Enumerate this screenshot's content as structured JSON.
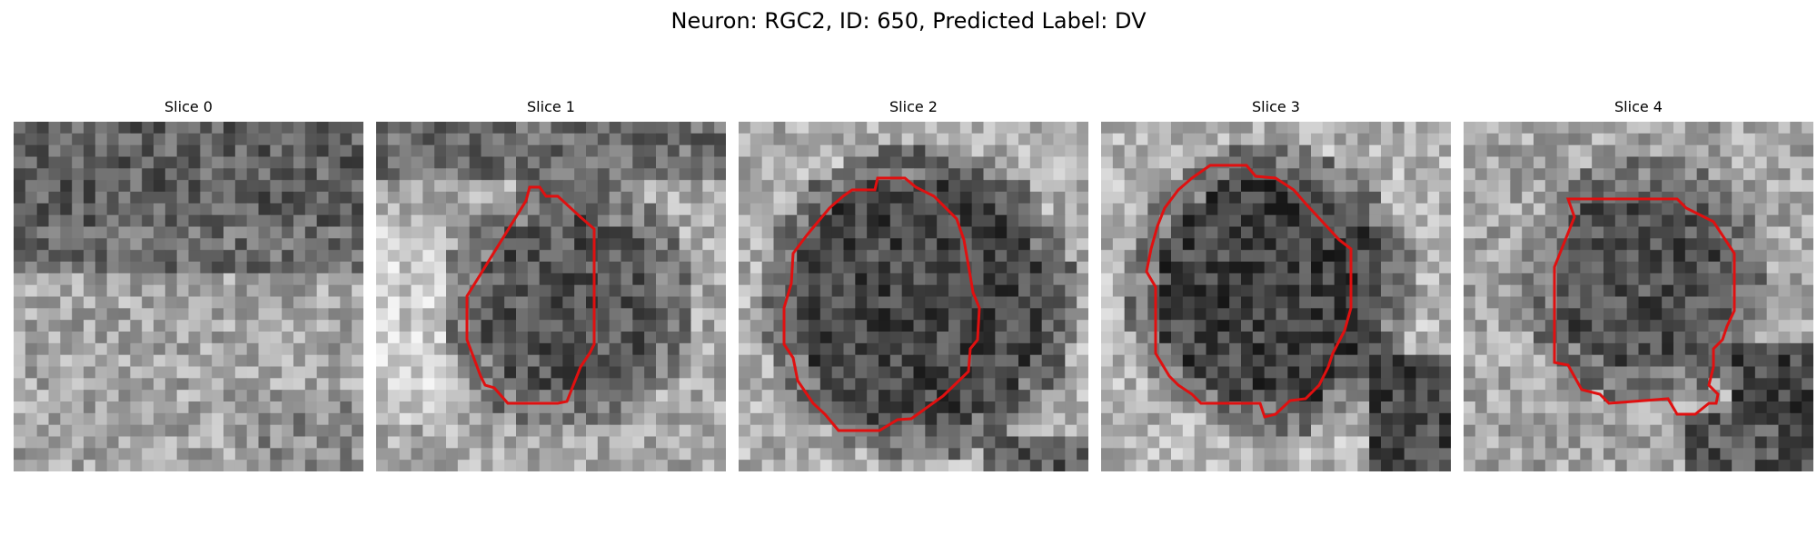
{
  "figure": {
    "title": "Neuron: RGC2, ID: 650, Predicted Label: DV",
    "panels": [
      {
        "title": "Slice 0",
        "texture_seed": 11,
        "has_contour": false
      },
      {
        "title": "Slice 1",
        "texture_seed": 23,
        "has_contour": true
      },
      {
        "title": "Slice 2",
        "texture_seed": 37,
        "has_contour": true
      },
      {
        "title": "Slice 3",
        "texture_seed": 53,
        "has_contour": true
      },
      {
        "title": "Slice 4",
        "texture_seed": 71,
        "has_contour": true
      }
    ],
    "contour_color": "#e01010",
    "colormap": "grayscale"
  }
}
